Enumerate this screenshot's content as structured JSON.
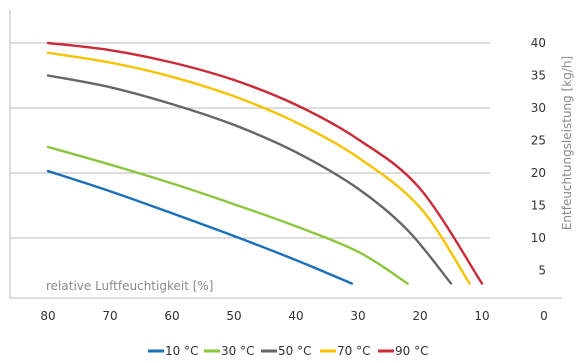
{
  "chart_data": {
    "type": "line",
    "xlabel": "relative Luftfeuchtigkeit [%]",
    "ylabel": "Entfeuchtungsleistung [kg/h]",
    "x_ticks": [
      "80",
      "70",
      "60",
      "50",
      "40",
      "30",
      "20",
      "10",
      "0"
    ],
    "y_ticks": [
      "5",
      "10",
      "15",
      "20",
      "25",
      "30",
      "35",
      "40"
    ],
    "xlim": [
      80,
      0
    ],
    "ylim": [
      2.5,
      42
    ],
    "grid": true,
    "legend_position": "bottom",
    "series": [
      {
        "name": "10 °C",
        "color": "#1a6fba",
        "x": [
          80,
          70,
          60,
          50,
          40,
          31
        ],
        "y": [
          20.3,
          17.2,
          13.8,
          10.3,
          6.6,
          3.0
        ]
      },
      {
        "name": "30 °C",
        "color": "#8cc63f",
        "x": [
          80,
          70,
          60,
          50,
          40,
          30,
          22
        ],
        "y": [
          24.0,
          21.3,
          18.4,
          15.2,
          11.8,
          7.9,
          3.0
        ]
      },
      {
        "name": "50 °C",
        "color": "#666666",
        "x": [
          80,
          70,
          60,
          50,
          40,
          30,
          22,
          15
        ],
        "y": [
          35.0,
          33.2,
          30.6,
          27.4,
          23.2,
          17.6,
          11.2,
          3.0
        ]
      },
      {
        "name": "70 °C",
        "color": "#f7c300",
        "x": [
          80,
          70,
          60,
          50,
          40,
          30,
          20,
          12
        ],
        "y": [
          38.5,
          37.0,
          34.8,
          31.8,
          27.8,
          22.4,
          14.7,
          3.0
        ]
      },
      {
        "name": "90 °C",
        "color": "#cc2a36",
        "x": [
          80,
          70,
          60,
          50,
          40,
          30,
          20,
          10
        ],
        "y": [
          40.0,
          38.9,
          37.0,
          34.3,
          30.5,
          25.2,
          17.6,
          3.0
        ]
      }
    ]
  }
}
